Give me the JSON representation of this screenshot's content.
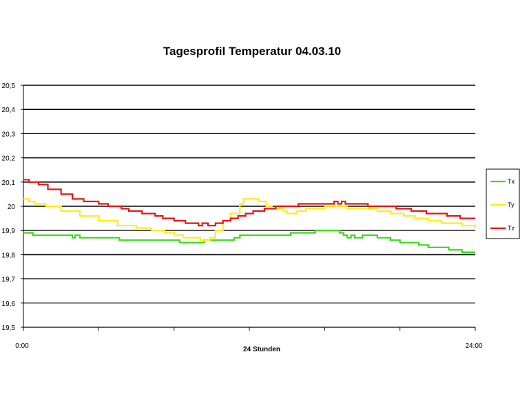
{
  "chart_data": {
    "type": "line",
    "title": "Tagesprofil Temperatur 04.03.10",
    "xlabel": "24 Stunden",
    "ylabel": "",
    "x_tick_labels": [
      "0:00",
      "24:00"
    ],
    "x_range_hours": [
      0,
      24
    ],
    "ylim": [
      19.5,
      20.5
    ],
    "y_tick_labels": [
      "19,5",
      "19,6",
      "19,7",
      "19,8",
      "19,9",
      "20",
      "20,1",
      "20,2",
      "20,3",
      "20,4",
      "20,5"
    ],
    "y_ticks": [
      19.5,
      19.6,
      19.7,
      19.8,
      19.9,
      20.0,
      20.1,
      20.2,
      20.3,
      20.4,
      20.5
    ],
    "grid": true,
    "legend_position": "right",
    "series": [
      {
        "name": "Tx",
        "color": "#33dd11",
        "points": [
          [
            0,
            19.89
          ],
          [
            0.3,
            19.89
          ],
          [
            0.5,
            19.88
          ],
          [
            1.5,
            19.88
          ],
          [
            2.5,
            19.88
          ],
          [
            2.6,
            19.87
          ],
          [
            2.75,
            19.88
          ],
          [
            3.0,
            19.87
          ],
          [
            4.0,
            19.87
          ],
          [
            5.0,
            19.87
          ],
          [
            5.1,
            19.86
          ],
          [
            6.5,
            19.86
          ],
          [
            8.1,
            19.86
          ],
          [
            8.3,
            19.85
          ],
          [
            9.5,
            19.85
          ],
          [
            9.6,
            19.86
          ],
          [
            11.0,
            19.86
          ],
          [
            11.2,
            19.87
          ],
          [
            11.5,
            19.88
          ],
          [
            13.0,
            19.88
          ],
          [
            14.0,
            19.88
          ],
          [
            14.2,
            19.89
          ],
          [
            15.0,
            19.89
          ],
          [
            15.5,
            19.9
          ],
          [
            16.5,
            19.9
          ],
          [
            16.8,
            19.89
          ],
          [
            17.0,
            19.88
          ],
          [
            17.2,
            19.87
          ],
          [
            17.4,
            19.88
          ],
          [
            17.6,
            19.87
          ],
          [
            18.0,
            19.88
          ],
          [
            18.5,
            19.88
          ],
          [
            18.8,
            19.87
          ],
          [
            19.5,
            19.86
          ],
          [
            20.0,
            19.85
          ],
          [
            20.8,
            19.85
          ],
          [
            21.0,
            19.84
          ],
          [
            21.5,
            19.83
          ],
          [
            22.5,
            19.83
          ],
          [
            22.6,
            19.82
          ],
          [
            23.3,
            19.81
          ],
          [
            24.0,
            19.81
          ]
        ]
      },
      {
        "name": "Ty",
        "color": "#ffee11",
        "points": [
          [
            0,
            20.03
          ],
          [
            0.3,
            20.02
          ],
          [
            0.6,
            20.01
          ],
          [
            1.2,
            20.0
          ],
          [
            2.0,
            19.98
          ],
          [
            3.0,
            19.96
          ],
          [
            4.0,
            19.94
          ],
          [
            5.0,
            19.92
          ],
          [
            6.0,
            19.91
          ],
          [
            6.8,
            19.9
          ],
          [
            7.5,
            19.89
          ],
          [
            8.0,
            19.88
          ],
          [
            8.5,
            19.87
          ],
          [
            9.0,
            19.87
          ],
          [
            9.4,
            19.86
          ],
          [
            9.7,
            19.86
          ],
          [
            9.9,
            19.87
          ],
          [
            10.2,
            19.9
          ],
          [
            10.6,
            19.94
          ],
          [
            11.0,
            19.97
          ],
          [
            11.5,
            20.01
          ],
          [
            11.7,
            20.03
          ],
          [
            12.2,
            20.03
          ],
          [
            12.5,
            20.02
          ],
          [
            12.9,
            20.0
          ],
          [
            13.2,
            19.99
          ],
          [
            13.8,
            19.98
          ],
          [
            14.0,
            19.97
          ],
          [
            14.5,
            19.98
          ],
          [
            15.0,
            19.99
          ],
          [
            15.8,
            19.99
          ],
          [
            16.0,
            20.0
          ],
          [
            16.8,
            20.0
          ],
          [
            17.2,
            19.99
          ],
          [
            18.0,
            19.99
          ],
          [
            18.8,
            19.98
          ],
          [
            19.5,
            19.97
          ],
          [
            20.2,
            19.96
          ],
          [
            20.8,
            19.95
          ],
          [
            21.5,
            19.94
          ],
          [
            22.2,
            19.93
          ],
          [
            22.8,
            19.93
          ],
          [
            23.3,
            19.92
          ],
          [
            24.0,
            19.91
          ]
        ]
      },
      {
        "name": "Tz",
        "color": "#ee1111",
        "points": [
          [
            0,
            20.11
          ],
          [
            0.3,
            20.1
          ],
          [
            0.8,
            20.09
          ],
          [
            1.3,
            20.07
          ],
          [
            2.0,
            20.05
          ],
          [
            2.6,
            20.03
          ],
          [
            3.2,
            20.02
          ],
          [
            4.0,
            20.01
          ],
          [
            4.5,
            20.0
          ],
          [
            5.2,
            19.99
          ],
          [
            5.6,
            19.98
          ],
          [
            6.3,
            19.97
          ],
          [
            7.0,
            19.96
          ],
          [
            7.4,
            19.95
          ],
          [
            8.0,
            19.94
          ],
          [
            8.6,
            19.93
          ],
          [
            9.2,
            19.93
          ],
          [
            9.3,
            19.92
          ],
          [
            9.5,
            19.93
          ],
          [
            9.8,
            19.92
          ],
          [
            10.2,
            19.93
          ],
          [
            10.6,
            19.94
          ],
          [
            11.0,
            19.95
          ],
          [
            11.4,
            19.96
          ],
          [
            11.8,
            19.97
          ],
          [
            12.2,
            19.98
          ],
          [
            12.8,
            19.99
          ],
          [
            13.4,
            20.0
          ],
          [
            14.0,
            20.0
          ],
          [
            14.4,
            20.0
          ],
          [
            14.6,
            20.01
          ],
          [
            15.2,
            20.01
          ],
          [
            16.0,
            20.01
          ],
          [
            16.4,
            20.01
          ],
          [
            16.5,
            20.02
          ],
          [
            16.7,
            20.01
          ],
          [
            16.9,
            20.02
          ],
          [
            17.1,
            20.01
          ],
          [
            18.2,
            20.01
          ],
          [
            18.3,
            20.0
          ],
          [
            19.0,
            20.0
          ],
          [
            19.8,
            19.99
          ],
          [
            20.6,
            19.98
          ],
          [
            21.4,
            19.97
          ],
          [
            22.3,
            19.97
          ],
          [
            22.5,
            19.96
          ],
          [
            23.2,
            19.95
          ],
          [
            24.0,
            19.95
          ]
        ]
      }
    ]
  }
}
